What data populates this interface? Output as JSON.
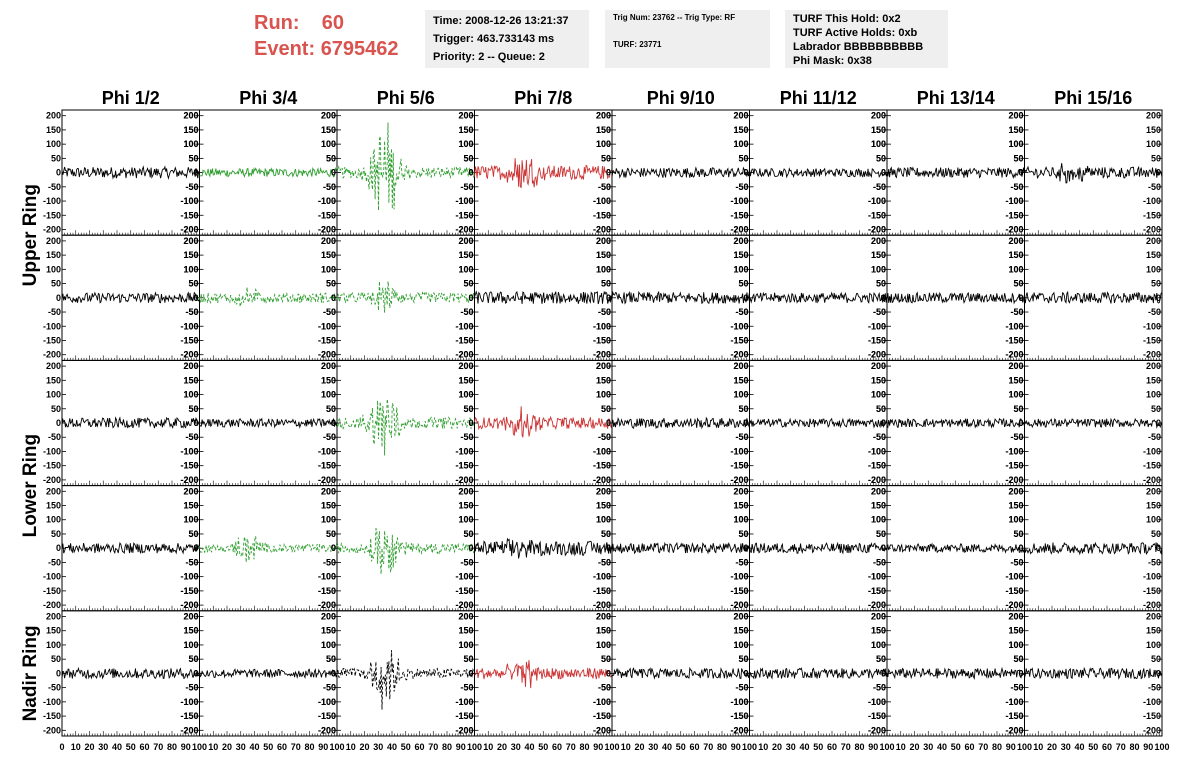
{
  "header": {
    "run_label": "Run:",
    "run_value": "60",
    "event_label": "Event:",
    "event_value": "6795462",
    "time": "Time: 2008-12-26 13:21:37",
    "trigger": "Trigger: 463.733143 ms",
    "priority": "Priority: 2 -- Queue: 2",
    "trig_num": "Trig Num: 23762 -- Trig Type: RF",
    "turf": "TURF: 23771",
    "turf_hold": "TURF This Hold: 0x2",
    "turf_active": "TURF Active Holds: 0xb",
    "labrador": "Labrador BBBBBBBBBB",
    "phi_mask": "Phi Mask: 0x38"
  },
  "colors": {
    "black": "#000000",
    "green": "#2e9e2e",
    "red": "#cc3333"
  },
  "chart_data": {
    "type": "line",
    "columns": [
      "Phi 1/2",
      "Phi 3/4",
      "Phi 5/6",
      "Phi 7/8",
      "Phi 9/10",
      "Phi 11/12",
      "Phi 13/14",
      "Phi 15/16"
    ],
    "rows": [
      "Upper Ring",
      "Upper Ring",
      "Lower Ring",
      "Lower Ring",
      "Nadir Ring"
    ],
    "row_labels": [
      "Upper Ring",
      "Lower Ring",
      "Nadir Ring"
    ],
    "ylim": [
      -220,
      220
    ],
    "xlim": [
      0,
      100
    ],
    "yticks": [
      200,
      150,
      100,
      50,
      0,
      -50,
      -100,
      -150,
      -200
    ],
    "xtick_labels": [
      "0",
      "10",
      "20",
      "30",
      "40",
      "50",
      "60",
      "70",
      "80",
      "90",
      "100"
    ],
    "panels": [
      [
        {
          "color": "black",
          "style": "solid",
          "amp": 20,
          "burst": 0
        },
        {
          "color": "green",
          "style": "solid",
          "amp": 15,
          "burst": 0
        },
        {
          "color": "green",
          "style": "dashed",
          "amp": 20,
          "burst": 180
        },
        {
          "color": "red",
          "style": "solid",
          "amp": 25,
          "burst": 70
        },
        {
          "color": "black",
          "style": "solid",
          "amp": 18,
          "burst": 0
        },
        {
          "color": "black",
          "style": "solid",
          "amp": 15,
          "burst": 0
        },
        {
          "color": "black",
          "style": "solid",
          "amp": 18,
          "burst": 0
        },
        {
          "color": "black",
          "style": "solid",
          "amp": 20,
          "burst": 35
        }
      ],
      [
        {
          "color": "black",
          "style": "solid",
          "amp": 18,
          "burst": 0
        },
        {
          "color": "green",
          "style": "dashed",
          "amp": 18,
          "burst": 30
        },
        {
          "color": "green",
          "style": "dashed",
          "amp": 18,
          "burst": 50
        },
        {
          "color": "black",
          "style": "solid",
          "amp": 22,
          "burst": 0
        },
        {
          "color": "black",
          "style": "solid",
          "amp": 20,
          "burst": 0
        },
        {
          "color": "black",
          "style": "solid",
          "amp": 18,
          "burst": 0
        },
        {
          "color": "black",
          "style": "solid",
          "amp": 18,
          "burst": 0
        },
        {
          "color": "black",
          "style": "solid",
          "amp": 20,
          "burst": 0
        }
      ],
      [
        {
          "color": "black",
          "style": "solid",
          "amp": 18,
          "burst": 0
        },
        {
          "color": "black",
          "style": "solid",
          "amp": 15,
          "burst": 0
        },
        {
          "color": "green",
          "style": "dashed",
          "amp": 20,
          "burst": 150
        },
        {
          "color": "red",
          "style": "solid",
          "amp": 20,
          "burst": 50
        },
        {
          "color": "black",
          "style": "solid",
          "amp": 18,
          "burst": 0
        },
        {
          "color": "black",
          "style": "solid",
          "amp": 15,
          "burst": 0
        },
        {
          "color": "black",
          "style": "solid",
          "amp": 15,
          "burst": 0
        },
        {
          "color": "black",
          "style": "solid",
          "amp": 15,
          "burst": 0
        }
      ],
      [
        {
          "color": "black",
          "style": "solid",
          "amp": 18,
          "burst": 0
        },
        {
          "color": "green",
          "style": "dashed",
          "amp": 15,
          "burst": 50
        },
        {
          "color": "green",
          "style": "dashed",
          "amp": 18,
          "burst": 100
        },
        {
          "color": "black",
          "style": "solid",
          "amp": 25,
          "burst": 30
        },
        {
          "color": "black",
          "style": "solid",
          "amp": 18,
          "burst": 0
        },
        {
          "color": "black",
          "style": "solid",
          "amp": 18,
          "burst": 0
        },
        {
          "color": "black",
          "style": "solid",
          "amp": 15,
          "burst": 0
        },
        {
          "color": "black",
          "style": "solid",
          "amp": 20,
          "burst": 0
        }
      ],
      [
        {
          "color": "black",
          "style": "solid",
          "amp": 18,
          "burst": 0
        },
        {
          "color": "black",
          "style": "solid",
          "amp": 15,
          "burst": 0
        },
        {
          "color": "black",
          "style": "dashed",
          "amp": 18,
          "burst": 120
        },
        {
          "color": "red",
          "style": "solid",
          "amp": 20,
          "burst": 50
        },
        {
          "color": "black",
          "style": "solid",
          "amp": 18,
          "burst": 0
        },
        {
          "color": "black",
          "style": "solid",
          "amp": 18,
          "burst": 0
        },
        {
          "color": "black",
          "style": "solid",
          "amp": 18,
          "burst": 0
        },
        {
          "color": "black",
          "style": "solid",
          "amp": 18,
          "burst": 0
        }
      ]
    ]
  }
}
